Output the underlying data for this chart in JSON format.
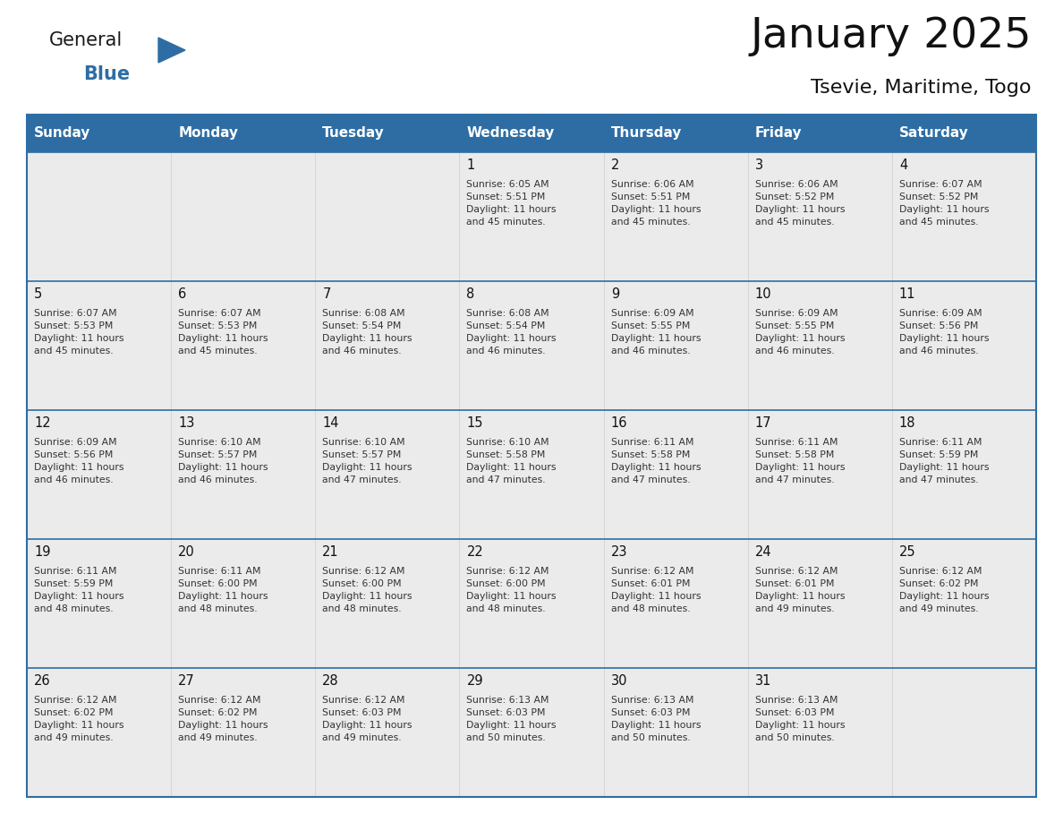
{
  "title": "January 2025",
  "subtitle": "Tsevie, Maritime, Togo",
  "header_color": "#2e6da4",
  "header_text_color": "#ffffff",
  "row_bg_color": "#ebebeb",
  "border_color": "#2e6da4",
  "text_color": "#333333",
  "day_num_color": "#222222",
  "days_of_week": [
    "Sunday",
    "Monday",
    "Tuesday",
    "Wednesday",
    "Thursday",
    "Friday",
    "Saturday"
  ],
  "weeks": [
    [
      {
        "day": null,
        "info": null
      },
      {
        "day": null,
        "info": null
      },
      {
        "day": null,
        "info": null
      },
      {
        "day": 1,
        "info": "Sunrise: 6:05 AM\nSunset: 5:51 PM\nDaylight: 11 hours\nand 45 minutes."
      },
      {
        "day": 2,
        "info": "Sunrise: 6:06 AM\nSunset: 5:51 PM\nDaylight: 11 hours\nand 45 minutes."
      },
      {
        "day": 3,
        "info": "Sunrise: 6:06 AM\nSunset: 5:52 PM\nDaylight: 11 hours\nand 45 minutes."
      },
      {
        "day": 4,
        "info": "Sunrise: 6:07 AM\nSunset: 5:52 PM\nDaylight: 11 hours\nand 45 minutes."
      }
    ],
    [
      {
        "day": 5,
        "info": "Sunrise: 6:07 AM\nSunset: 5:53 PM\nDaylight: 11 hours\nand 45 minutes."
      },
      {
        "day": 6,
        "info": "Sunrise: 6:07 AM\nSunset: 5:53 PM\nDaylight: 11 hours\nand 45 minutes."
      },
      {
        "day": 7,
        "info": "Sunrise: 6:08 AM\nSunset: 5:54 PM\nDaylight: 11 hours\nand 46 minutes."
      },
      {
        "day": 8,
        "info": "Sunrise: 6:08 AM\nSunset: 5:54 PM\nDaylight: 11 hours\nand 46 minutes."
      },
      {
        "day": 9,
        "info": "Sunrise: 6:09 AM\nSunset: 5:55 PM\nDaylight: 11 hours\nand 46 minutes."
      },
      {
        "day": 10,
        "info": "Sunrise: 6:09 AM\nSunset: 5:55 PM\nDaylight: 11 hours\nand 46 minutes."
      },
      {
        "day": 11,
        "info": "Sunrise: 6:09 AM\nSunset: 5:56 PM\nDaylight: 11 hours\nand 46 minutes."
      }
    ],
    [
      {
        "day": 12,
        "info": "Sunrise: 6:09 AM\nSunset: 5:56 PM\nDaylight: 11 hours\nand 46 minutes."
      },
      {
        "day": 13,
        "info": "Sunrise: 6:10 AM\nSunset: 5:57 PM\nDaylight: 11 hours\nand 46 minutes."
      },
      {
        "day": 14,
        "info": "Sunrise: 6:10 AM\nSunset: 5:57 PM\nDaylight: 11 hours\nand 47 minutes."
      },
      {
        "day": 15,
        "info": "Sunrise: 6:10 AM\nSunset: 5:58 PM\nDaylight: 11 hours\nand 47 minutes."
      },
      {
        "day": 16,
        "info": "Sunrise: 6:11 AM\nSunset: 5:58 PM\nDaylight: 11 hours\nand 47 minutes."
      },
      {
        "day": 17,
        "info": "Sunrise: 6:11 AM\nSunset: 5:58 PM\nDaylight: 11 hours\nand 47 minutes."
      },
      {
        "day": 18,
        "info": "Sunrise: 6:11 AM\nSunset: 5:59 PM\nDaylight: 11 hours\nand 47 minutes."
      }
    ],
    [
      {
        "day": 19,
        "info": "Sunrise: 6:11 AM\nSunset: 5:59 PM\nDaylight: 11 hours\nand 48 minutes."
      },
      {
        "day": 20,
        "info": "Sunrise: 6:11 AM\nSunset: 6:00 PM\nDaylight: 11 hours\nand 48 minutes."
      },
      {
        "day": 21,
        "info": "Sunrise: 6:12 AM\nSunset: 6:00 PM\nDaylight: 11 hours\nand 48 minutes."
      },
      {
        "day": 22,
        "info": "Sunrise: 6:12 AM\nSunset: 6:00 PM\nDaylight: 11 hours\nand 48 minutes."
      },
      {
        "day": 23,
        "info": "Sunrise: 6:12 AM\nSunset: 6:01 PM\nDaylight: 11 hours\nand 48 minutes."
      },
      {
        "day": 24,
        "info": "Sunrise: 6:12 AM\nSunset: 6:01 PM\nDaylight: 11 hours\nand 49 minutes."
      },
      {
        "day": 25,
        "info": "Sunrise: 6:12 AM\nSunset: 6:02 PM\nDaylight: 11 hours\nand 49 minutes."
      }
    ],
    [
      {
        "day": 26,
        "info": "Sunrise: 6:12 AM\nSunset: 6:02 PM\nDaylight: 11 hours\nand 49 minutes."
      },
      {
        "day": 27,
        "info": "Sunrise: 6:12 AM\nSunset: 6:02 PM\nDaylight: 11 hours\nand 49 minutes."
      },
      {
        "day": 28,
        "info": "Sunrise: 6:12 AM\nSunset: 6:03 PM\nDaylight: 11 hours\nand 49 minutes."
      },
      {
        "day": 29,
        "info": "Sunrise: 6:13 AM\nSunset: 6:03 PM\nDaylight: 11 hours\nand 50 minutes."
      },
      {
        "day": 30,
        "info": "Sunrise: 6:13 AM\nSunset: 6:03 PM\nDaylight: 11 hours\nand 50 minutes."
      },
      {
        "day": 31,
        "info": "Sunrise: 6:13 AM\nSunset: 6:03 PM\nDaylight: 11 hours\nand 50 minutes."
      },
      {
        "day": null,
        "info": null
      }
    ]
  ],
  "logo_text1": "General",
  "logo_text2": "Blue",
  "logo_text1_color": "#1a1a1a",
  "logo_text2_color": "#2e6da4",
  "logo_triangle_color": "#2e6da4",
  "fig_width": 11.88,
  "fig_height": 9.18,
  "dpi": 100
}
